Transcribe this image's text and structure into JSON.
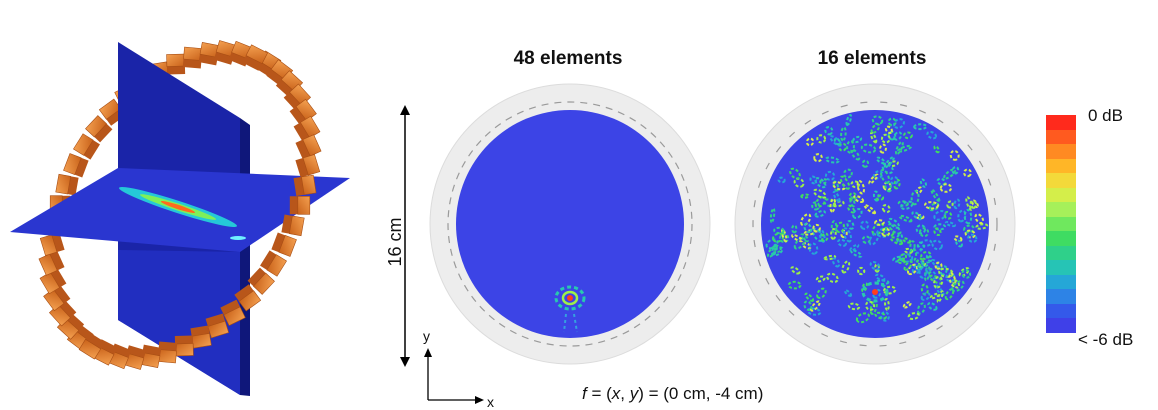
{
  "panels": {
    "left_title": "48 elements",
    "right_title": "16 elements"
  },
  "dimension": {
    "label": "16 cm"
  },
  "colorbar": {
    "max_label": "0 dB",
    "min_label": "< -6 dB",
    "colors": [
      "#ff2a1c",
      "#ff5a1f",
      "#ff8a22",
      "#ffb627",
      "#f3d93a",
      "#d4ee4a",
      "#a6f05a",
      "#6fe85e",
      "#3fdc62",
      "#2fd08a",
      "#26c4b5",
      "#25a7d7",
      "#2d83e6",
      "#3459ea",
      "#3f40e8"
    ]
  },
  "axes": {
    "x_label": "x",
    "y_label": "y"
  },
  "focus": {
    "f": "f",
    "eq1": " = (",
    "x": "x",
    "comma": ", ",
    "y": "y",
    "eq2": ") = (0 cm, -4 cm)"
  },
  "colors": {
    "field_blue": "#3c44e6",
    "plane_blue": "#1a24b8",
    "element_orange": "#e07a1e"
  }
}
